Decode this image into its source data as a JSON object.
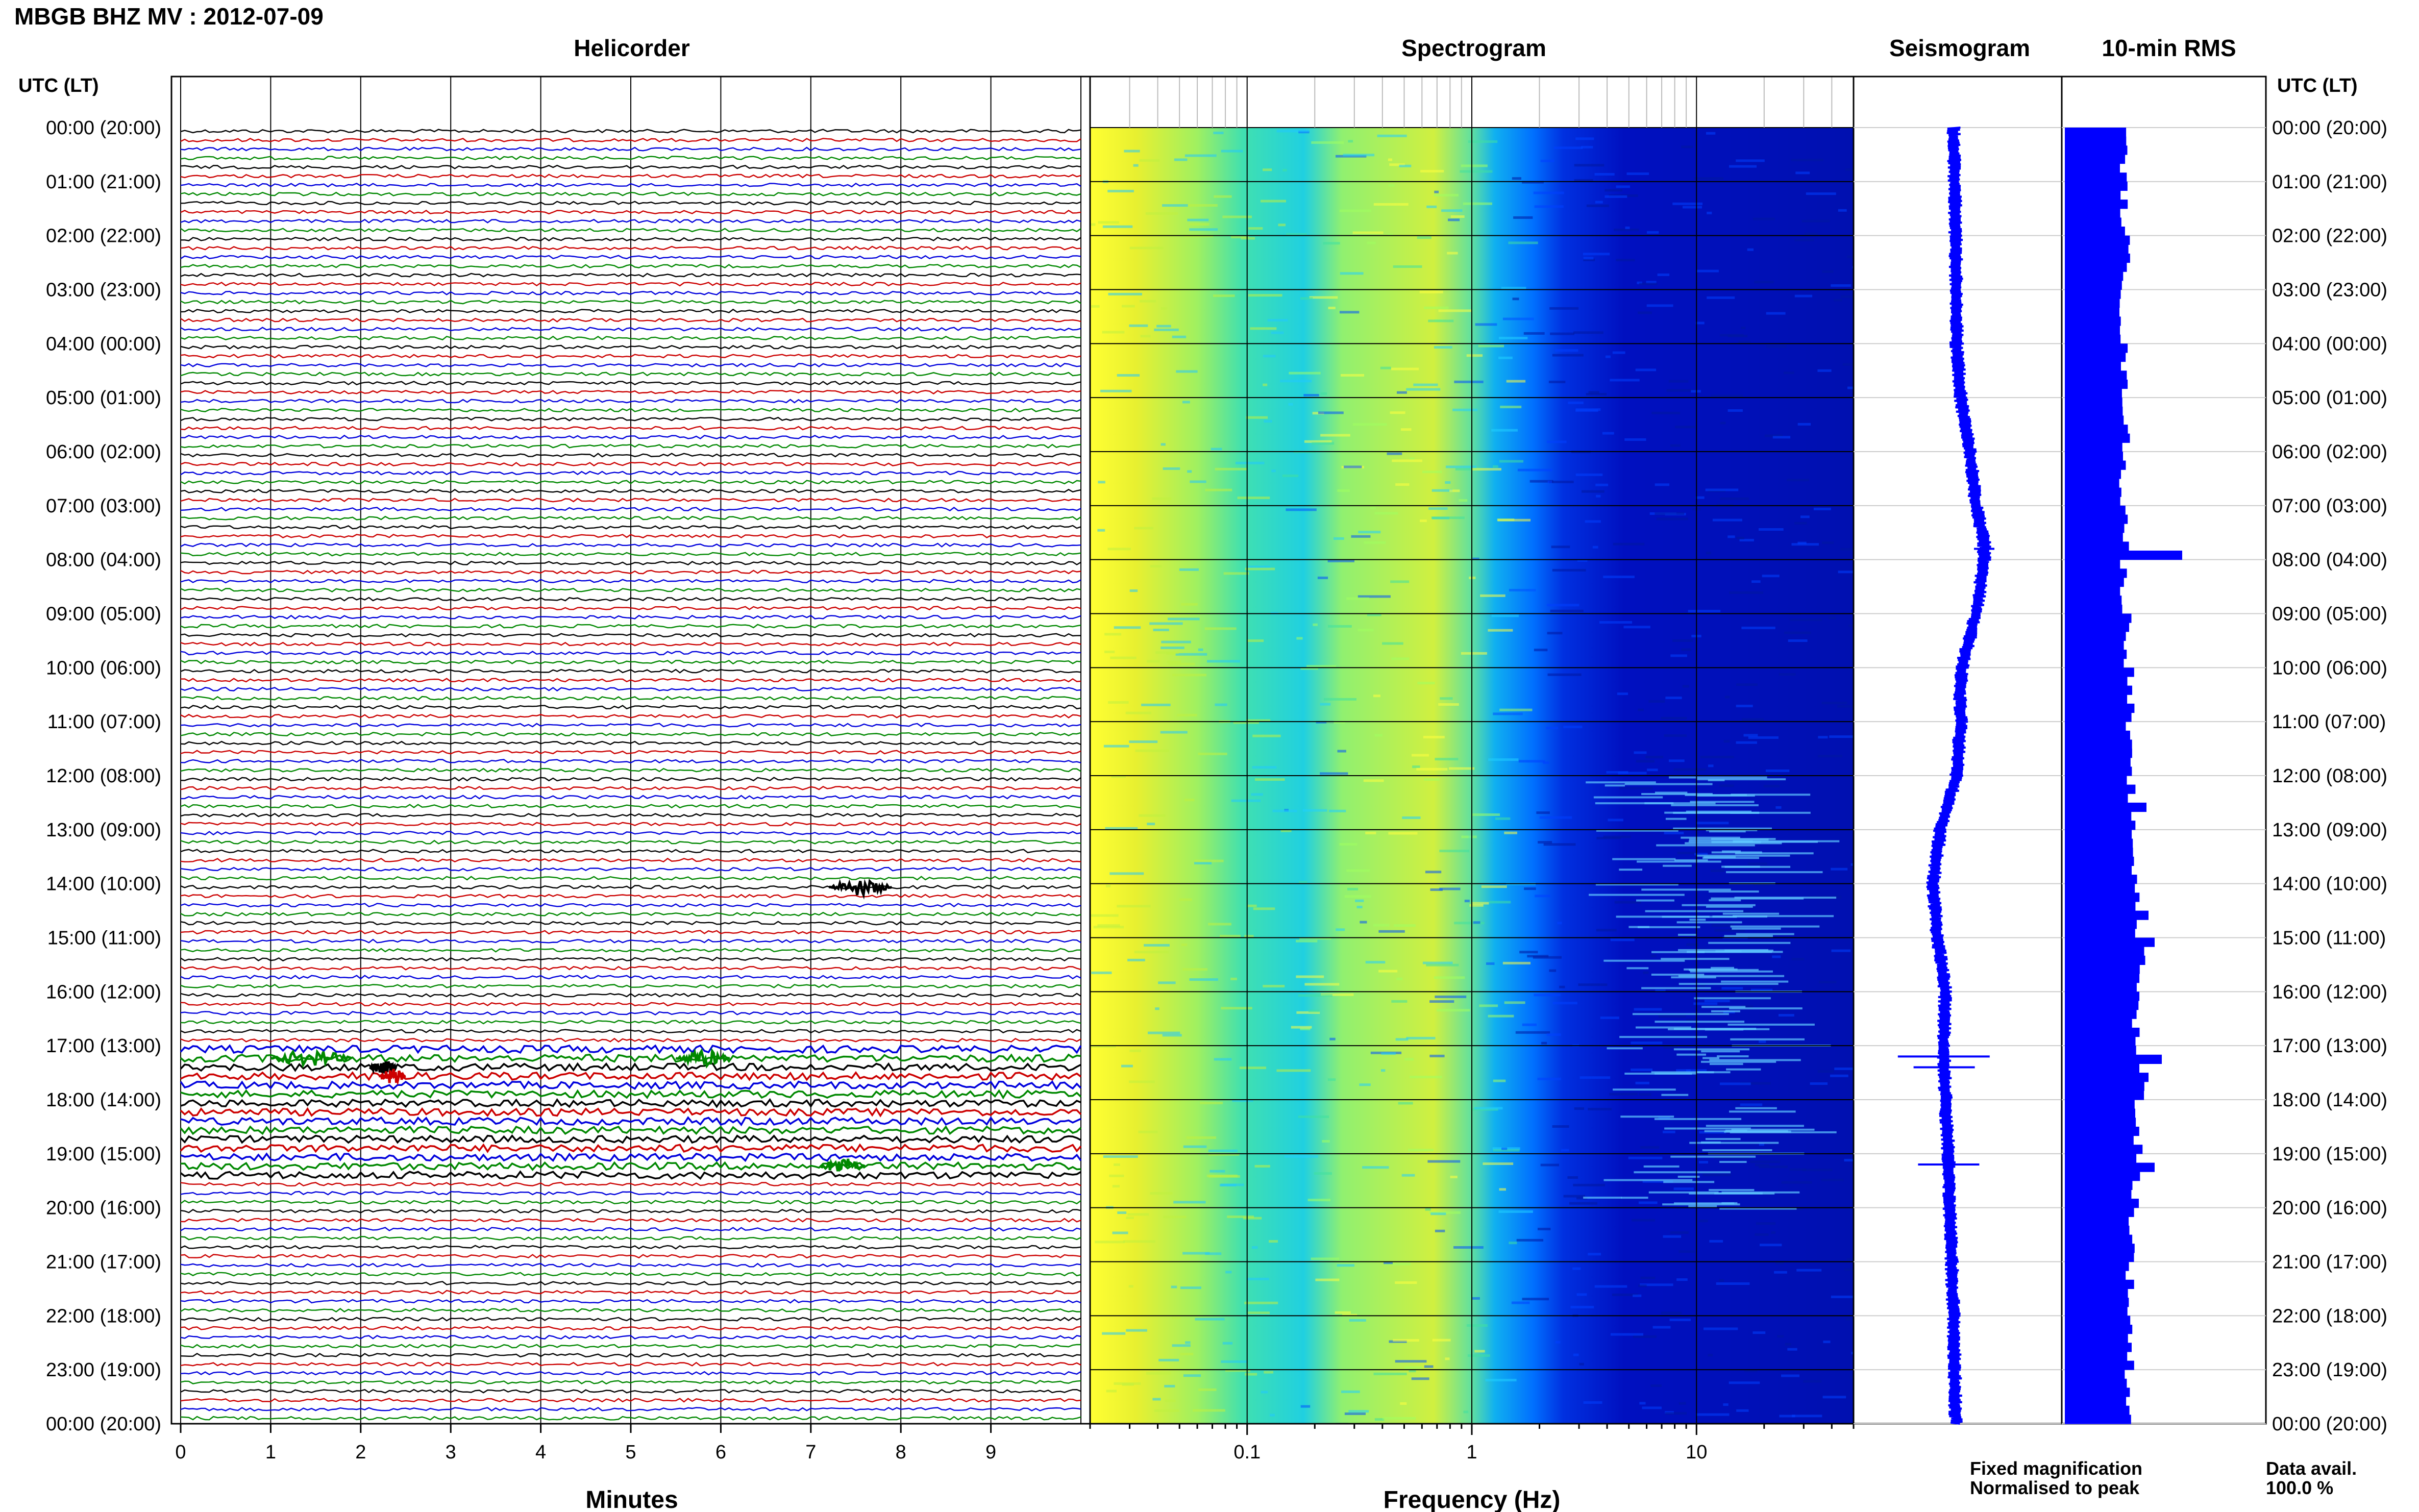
{
  "header": {
    "title": "MBGB BHZ MV : 2012-07-09"
  },
  "panels": {
    "helicorder_title": "Helicorder",
    "spectrogram_title": "Spectrogram",
    "seismogram_title": "Seismogram",
    "rms_title": "10-min RMS"
  },
  "axes": {
    "utc_label_left": "UTC (LT)",
    "utc_label_right": "UTC (LT)",
    "minutes_label": "Minutes",
    "frequency_label": "Frequency (Hz)"
  },
  "legend": {
    "fixed": "Fixed magnification",
    "normalised": "Normalised to peak",
    "fixed_color": "#0000ff",
    "normalised_color": "#ff0000",
    "data_avail_label": "Data avail.",
    "data_avail_value": "100.0 %"
  },
  "chart_data": [
    {
      "type": "line",
      "title": "Helicorder",
      "xlabel": "Minutes",
      "xlim": [
        0,
        10
      ],
      "x_ticks": [
        "0",
        "1",
        "2",
        "3",
        "4",
        "5",
        "6",
        "7",
        "8",
        "9"
      ],
      "time_labels": [
        "00:00 (20:00)",
        "01:00 (21:00)",
        "02:00 (22:00)",
        "03:00 (23:00)",
        "04:00 (00:00)",
        "05:00 (01:00)",
        "06:00 (02:00)",
        "07:00 (03:00)",
        "08:00 (04:00)",
        "09:00 (05:00)",
        "10:00 (06:00)",
        "11:00 (07:00)",
        "12:00 (08:00)",
        "13:00 (09:00)",
        "14:00 (10:00)",
        "15:00 (11:00)",
        "16:00 (12:00)",
        "17:00 (13:00)",
        "18:00 (14:00)",
        "19:00 (15:00)",
        "20:00 (16:00)",
        "21:00 (17:00)",
        "22:00 (18:00)",
        "23:00 (19:00)",
        "00:00 (20:00)"
      ],
      "trace_colors": [
        "#000000",
        "#cc0000",
        "#0000dd",
        "#008800"
      ],
      "events": [
        {
          "hour": 14.05,
          "minute_start": 7.2,
          "minute_end": 7.9
        },
        {
          "hour": 17.1,
          "minute_start": 1.0,
          "minute_end": 1.9
        },
        {
          "hour": 17.1,
          "minute_start": 5.5,
          "minute_end": 6.1
        },
        {
          "hour": 17.3,
          "minute_start": 2.1,
          "minute_end": 2.4
        },
        {
          "hour": 17.5,
          "minute_start": 2.2,
          "minute_end": 2.5
        },
        {
          "hour": 19.15,
          "minute_start": 7.1,
          "minute_end": 7.6
        }
      ]
    },
    {
      "type": "heatmap",
      "title": "Spectrogram",
      "xlabel": "Frequency (Hz)",
      "x_scale": "log",
      "xlim": [
        0.02,
        50
      ],
      "x_ticks": [
        "0.1",
        "1",
        "10"
      ],
      "colormap": [
        "#ffff00",
        "#7fff7f",
        "#00c8ff",
        "#0064ff",
        "#0000c8"
      ]
    },
    {
      "type": "line",
      "title": "Seismogram",
      "series_color": "#0000ff",
      "wander": [
        {
          "hour": 0,
          "offset": -0.02
        },
        {
          "hour": 2,
          "offset": 0.0
        },
        {
          "hour": 4,
          "offset": 0.01
        },
        {
          "hour": 5,
          "offset": 0.05
        },
        {
          "hour": 6,
          "offset": 0.14
        },
        {
          "hour": 7,
          "offset": 0.2
        },
        {
          "hour": 7.7,
          "offset": 0.28
        },
        {
          "hour": 8,
          "offset": 0.28
        },
        {
          "hour": 9,
          "offset": 0.2
        },
        {
          "hour": 10,
          "offset": 0.06
        },
        {
          "hour": 10.5,
          "offset": 0.04
        },
        {
          "hour": 11,
          "offset": 0.05
        },
        {
          "hour": 12,
          "offset": 0.01
        },
        {
          "hour": 13,
          "offset": -0.15
        },
        {
          "hour": 14,
          "offset": -0.22
        },
        {
          "hour": 15,
          "offset": -0.18
        },
        {
          "hour": 16,
          "offset": -0.1
        },
        {
          "hour": 17,
          "offset": -0.12
        },
        {
          "hour": 18,
          "offset": -0.1
        },
        {
          "hour": 19,
          "offset": -0.07
        },
        {
          "hour": 20,
          "offset": -0.06
        },
        {
          "hour": 22,
          "offset": -0.02
        },
        {
          "hour": 24,
          "offset": 0.0
        }
      ],
      "spikes": [
        {
          "hour": 7.8,
          "amp": 0.1
        },
        {
          "hour": 17.2,
          "amp": 0.45
        },
        {
          "hour": 17.4,
          "amp": 0.3
        },
        {
          "hour": 19.2,
          "amp": 0.3
        }
      ]
    },
    {
      "type": "bar",
      "title": "10-min RMS",
      "series_color": "#0000ff",
      "hourly_level": [
        0.58,
        0.58,
        0.6,
        0.57,
        0.58,
        0.6,
        0.57,
        0.6,
        0.58,
        0.62,
        0.64,
        0.62,
        0.65,
        0.68,
        0.72,
        0.74,
        0.7,
        0.75,
        0.72,
        0.7,
        0.66,
        0.64,
        0.64,
        0.63
      ],
      "peaks": [
        {
          "hour": 7.83,
          "value": 1.15
        },
        {
          "hour": 12.5,
          "value": 0.8
        },
        {
          "hour": 14.5,
          "value": 0.82
        },
        {
          "hour": 15.0,
          "value": 0.88
        },
        {
          "hour": 17.17,
          "value": 0.95
        },
        {
          "hour": 17.5,
          "value": 0.82
        },
        {
          "hour": 19.17,
          "value": 0.88
        }
      ]
    }
  ]
}
